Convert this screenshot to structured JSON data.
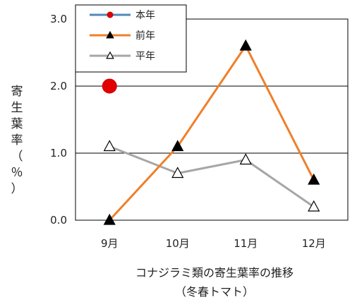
{
  "chart_data": {
    "type": "line",
    "title": "コナジラミ類の寄生葉率の推移",
    "subtitle": "（冬春トマト）",
    "xlabel": "",
    "ylabel": "寄生葉率（％）",
    "ylabel_chars": [
      "寄",
      "生",
      "葉",
      "率",
      "（",
      "％",
      "）"
    ],
    "categories": [
      "9月",
      "10月",
      "11月",
      "12月"
    ],
    "ylim": [
      0,
      3.0
    ],
    "yticks": [
      "0.0",
      "1.0",
      "2.0",
      "3.0"
    ],
    "grid": true,
    "legend_position": "top-left",
    "series": [
      {
        "name": "本年",
        "values": [
          2.0,
          null,
          null,
          null
        ],
        "color": "#e30000",
        "line_color": "#4f8ab8",
        "marker": "circle"
      },
      {
        "name": "前年",
        "values": [
          0.0,
          1.1,
          2.6,
          0.6
        ],
        "color": "#f07f2a",
        "marker": "triangle-filled"
      },
      {
        "name": "平年",
        "values": [
          1.1,
          0.7,
          0.9,
          0.2
        ],
        "color": "#a6a6a6",
        "marker": "triangle-open"
      }
    ]
  }
}
